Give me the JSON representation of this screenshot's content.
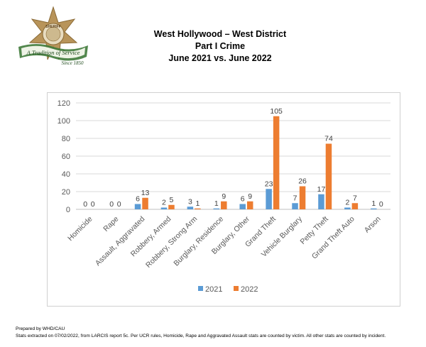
{
  "logo": {
    "badge_text": "SHERIFF",
    "ribbon_text": "A Tradition of Service",
    "since_text": "Since 1850",
    "colors": {
      "star": "#b8945a",
      "ribbon": "#3f7a3a",
      "ribbon_text": "#1f4a1c"
    }
  },
  "header": {
    "line1": "West Hollywood – West District",
    "line2": "Part I Crime",
    "line3": "June 2021 vs. June 2022"
  },
  "chart_data": {
    "type": "bar",
    "categories": [
      "Homicide",
      "Rape",
      "Assault, Aggravated",
      "Robbery, Armed",
      "Robbery, Strong Arm",
      "Burglary, Residence",
      "Burglary, Other",
      "Grand Theft",
      "Vehicle Burglary",
      "Petty Theft",
      "Grand Theft Auto",
      "Arson"
    ],
    "series": [
      {
        "name": "2021",
        "values": [
          0,
          0,
          6,
          2,
          3,
          1,
          6,
          23,
          7,
          17,
          2,
          1
        ],
        "color": "#5b9bd5"
      },
      {
        "name": "2022",
        "values": [
          0,
          0,
          13,
          5,
          1,
          9,
          9,
          105,
          26,
          74,
          7,
          0
        ],
        "color": "#ed7d31"
      }
    ],
    "yticks": [
      "0",
      "20",
      "40",
      "60",
      "80",
      "100",
      "120"
    ],
    "ylim": [
      0,
      120
    ],
    "grid": true,
    "legend": "bottom-center"
  },
  "footer": {
    "line1": "Prepared by WHD/CAU",
    "line2": "Stats extracted on 07/02/2022, from LARCIS report 5c. Per UCR rules, Homicide, Rape and Aggravated Assault stats are counted by victim. All other stats are counted by incident."
  }
}
